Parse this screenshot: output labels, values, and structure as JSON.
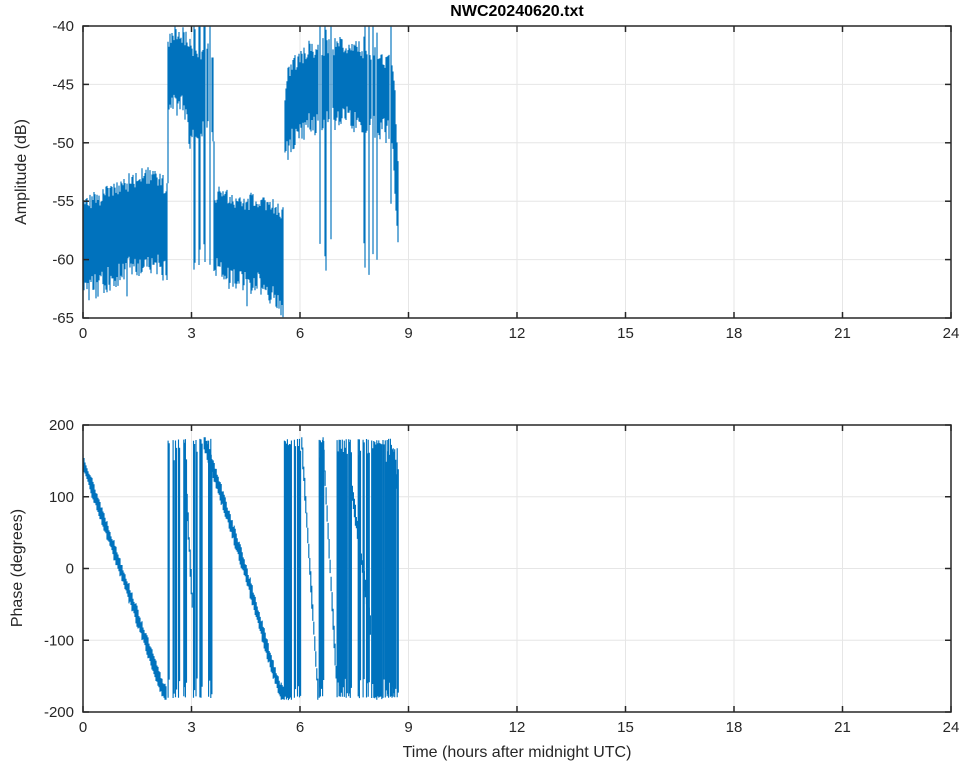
{
  "figure": {
    "title": "NWC20240620.txt",
    "xlabel": "Time (hours after midnight UTC)",
    "line_color": "#0072BD",
    "axis_color": "#262626",
    "grid_color": "#E6E6E6",
    "background": "#FFFFFF"
  },
  "chart_data": [
    {
      "type": "line",
      "title": "NWC20240620.txt",
      "ylabel": "Amplitude (dB)",
      "xlim": [
        0,
        24
      ],
      "ylim": [
        -65,
        -40
      ],
      "xticks": [
        0,
        3,
        6,
        9,
        12,
        15,
        18,
        21,
        24
      ],
      "yticks": [
        -40,
        -45,
        -50,
        -55,
        -60,
        -65
      ],
      "grid": true,
      "data_start_hour": 0,
      "data_end_hour": 8.73,
      "band_segments": [
        {
          "points": [
            [
              0.0,
              -55.5,
              -61.5
            ],
            [
              0.5,
              -55.0,
              -61.0
            ],
            [
              1.0,
              -54.0,
              -60.0
            ],
            [
              1.5,
              -53.3,
              -59.3
            ],
            [
              1.9,
              -53.0,
              -59.0
            ],
            [
              2.2,
              -53.6,
              -59.6
            ],
            [
              2.33,
              -54.2,
              -60.2
            ]
          ],
          "spike_depth": -63.5
        },
        {
          "points": [
            [
              2.35,
              -41.5,
              -46.5
            ],
            [
              2.5,
              -40.7,
              -45.5
            ],
            [
              2.7,
              -40.8,
              -45.5
            ],
            [
              2.85,
              -41.3,
              -47.0
            ],
            [
              2.97,
              -42.0,
              -49.0
            ]
          ],
          "spike_depth": -50
        },
        {
          "points": [
            [
              3.62,
              -54.6,
              -59.8
            ],
            [
              4.2,
              -55.0,
              -60.3
            ],
            [
              4.8,
              -55.4,
              -61.0
            ],
            [
              5.2,
              -55.8,
              -61.8
            ],
            [
              5.45,
              -56.0,
              -62.5
            ],
            [
              5.55,
              -56.3,
              -63.0
            ]
          ],
          "spike_depth": -64
        },
        {
          "points": [
            [
              5.58,
              -46.0,
              -50.5
            ],
            [
              5.65,
              -44.2,
              -49.5
            ],
            [
              5.8,
              -43.5,
              -48.5
            ],
            [
              6.0,
              -43.0,
              -48.0
            ],
            [
              6.2,
              -42.3,
              -47.3
            ],
            [
              6.44,
              -42.3,
              -47.3
            ]
          ],
          "spike_depth": -50.5
        },
        {
          "points": [
            [
              6.97,
              -42.0,
              -47.0
            ],
            [
              7.3,
              -41.9,
              -46.8
            ],
            [
              7.7,
              -42.3,
              -47.0
            ]
          ],
          "spike_depth": -49
        },
        {
          "points": [
            [
              8.21,
              -42.8,
              -47.5
            ],
            [
              8.45,
              -43.2,
              -48.0
            ]
          ],
          "spike_depth": -50
        },
        {
          "points": [
            [
              8.56,
              -44.0,
              -49.0
            ],
            [
              8.62,
              -46.0,
              -52.0
            ],
            [
              8.68,
              -50.0,
              -56.0
            ],
            [
              8.73,
              -53.0,
              -58.0
            ]
          ],
          "spike_depth": -58
        }
      ],
      "dropout_clusters": [
        {
          "t0": 2.97,
          "t1": 3.62,
          "high_top": -42.5,
          "high_bottom": -48.0,
          "drop_depth": -62,
          "n_drops": 4
        },
        {
          "t0": 6.44,
          "t1": 6.97,
          "high_top": -42.0,
          "high_bottom": -47.0,
          "drop_depth": -61.5,
          "n_drops": 3
        },
        {
          "t0": 7.7,
          "t1": 8.21,
          "high_top": -42.5,
          "high_bottom": -47.5,
          "drop_depth": -62,
          "n_drops": 4
        },
        {
          "t0": 8.45,
          "t1": 8.56,
          "high_top": -43.5,
          "high_bottom": -48.0,
          "drop_depth": -58,
          "n_drops": 1
        }
      ]
    },
    {
      "type": "line",
      "ylabel": "Phase (degrees)",
      "xlabel": "Time (hours after midnight UTC)",
      "xlim": [
        0,
        24
      ],
      "ylim": [
        -200,
        200
      ],
      "xticks": [
        0,
        3,
        6,
        9,
        12,
        15,
        18,
        21,
        24
      ],
      "yticks": [
        200,
        100,
        0,
        -100,
        -200
      ],
      "grid": true,
      "data_start_hour": 0,
      "data_end_hour": 8.72,
      "segments": [
        {
          "kind": "ramp",
          "points": [
            [
              0,
              148
            ],
            [
              1.0,
              5
            ],
            [
              2.0,
              -140
            ],
            [
              2.2,
              -168
            ],
            [
              2.32,
              -176
            ]
          ],
          "halfwidth": 11
        },
        {
          "kind": "wraps",
          "t0": 2.33,
          "t1": 2.9,
          "count": 6,
          "top": 178,
          "bottom": -178
        },
        {
          "kind": "ramp",
          "points": [
            [
              2.88,
              85
            ],
            [
              3.03,
              -55
            ]
          ],
          "halfwidth": 15
        },
        {
          "kind": "wraps",
          "t0": 3.04,
          "t1": 3.31,
          "count": 4,
          "top": 178,
          "bottom": -178
        },
        {
          "kind": "ramp",
          "points": [
            [
              3.35,
              178
            ],
            [
              4.5,
              -5
            ],
            [
              5.2,
              -132
            ],
            [
              5.45,
              -170
            ],
            [
              5.57,
              -175
            ]
          ],
          "halfwidth": 11
        },
        {
          "kind": "wraps",
          "t0": 3.46,
          "t1": 3.54,
          "count": 2,
          "top": 178,
          "bottom": -178
        },
        {
          "kind": "block",
          "t0": 5.57,
          "t1": 5.78,
          "top": 178,
          "bottom": -178
        },
        {
          "kind": "wraps",
          "t0": 5.8,
          "t1": 6.05,
          "count": 3,
          "top": 178,
          "bottom": -178
        },
        {
          "kind": "ramp",
          "points": [
            [
              6.05,
              175
            ],
            [
              6.5,
              -175
            ]
          ],
          "halfwidth": 12
        },
        {
          "kind": "wraps",
          "t0": 6.5,
          "t1": 6.64,
          "count": 3,
          "top": 178,
          "bottom": -178
        },
        {
          "kind": "ramp",
          "points": [
            [
              6.64,
              175
            ],
            [
              7.0,
              -145
            ]
          ],
          "halfwidth": 12
        },
        {
          "kind": "wraps",
          "t0": 6.98,
          "t1": 7.42,
          "count": 8,
          "top": 178,
          "bottom": -178
        },
        {
          "kind": "ramp",
          "points": [
            [
              7.42,
              115
            ],
            [
              7.97,
              -88
            ]
          ],
          "halfwidth": 12
        },
        {
          "kind": "wraps",
          "t0": 7.55,
          "t1": 8.02,
          "count": 6,
          "top": 178,
          "bottom": -178
        },
        {
          "kind": "block",
          "t0": 8.04,
          "t1": 8.28,
          "top": 178,
          "bottom": -178
        },
        {
          "kind": "wraps",
          "t0": 8.28,
          "t1": 8.52,
          "count": 5,
          "top": 178,
          "bottom": -178
        },
        {
          "kind": "ramp",
          "points": [
            [
              8.5,
              168
            ],
            [
              8.72,
              106
            ]
          ],
          "halfwidth": 11
        },
        {
          "kind": "wraps",
          "t0": 8.52,
          "t1": 8.7,
          "count": 4,
          "top": 165,
          "bottom": -178
        }
      ]
    }
  ]
}
